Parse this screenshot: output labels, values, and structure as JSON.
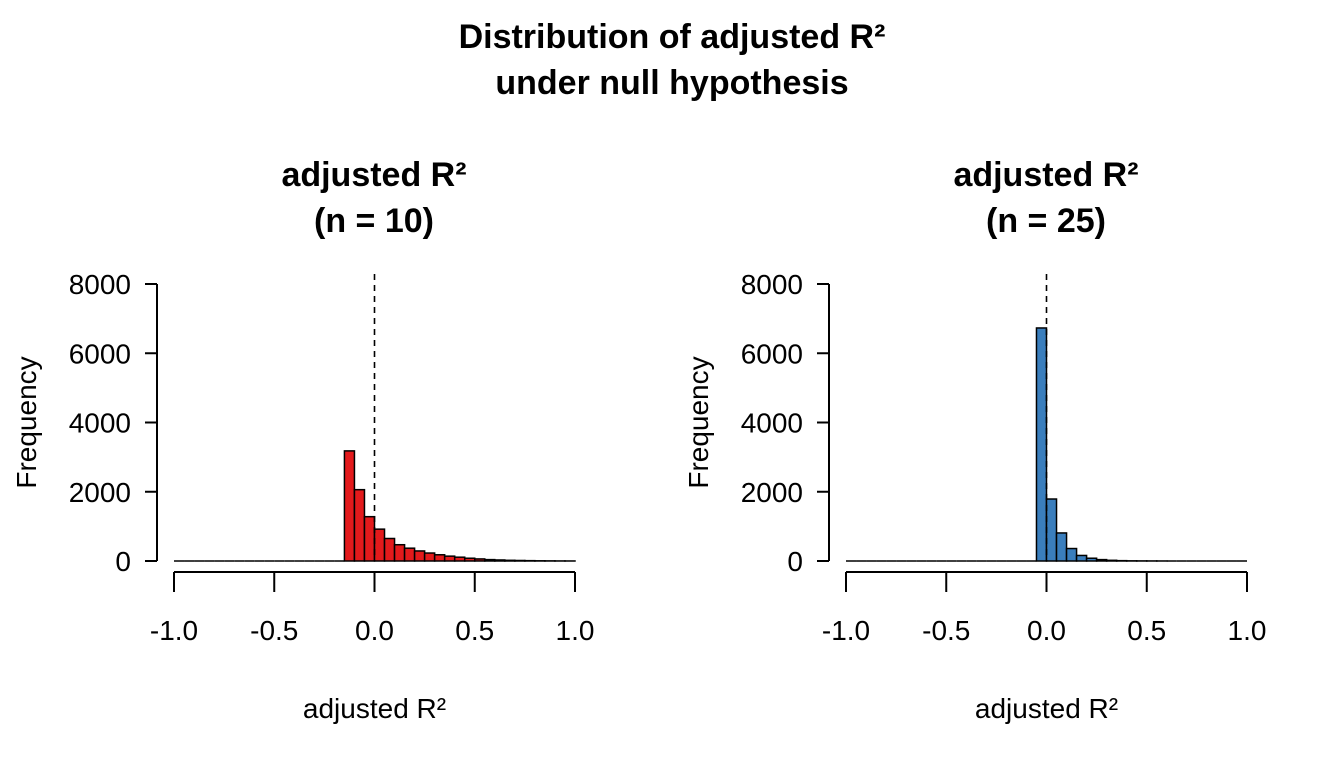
{
  "figure": {
    "title_line1": "Distribution of adjusted R²",
    "title_line2": "under null hypothesis"
  },
  "chart_data": [
    {
      "type": "bar",
      "subtype": "histogram",
      "title_line1": "adjusted R²",
      "title_line2": "(n = 10)",
      "xlabel": "adjusted R²",
      "ylabel": "Frequency",
      "xlim": [
        -1.0,
        1.0
      ],
      "ylim": [
        0,
        8000
      ],
      "x_ticks": [
        -1.0,
        -0.5,
        0.0,
        0.5,
        1.0
      ],
      "x_tick_labels": [
        "-1.0",
        "-0.5",
        "0.0",
        "0.5",
        "1.0"
      ],
      "y_ticks": [
        0,
        2000,
        4000,
        6000,
        8000
      ],
      "y_tick_labels": [
        "0",
        "2000",
        "4000",
        "6000",
        "8000"
      ],
      "bin_width": 0.05,
      "bin_starts": [
        -1.0,
        -0.95,
        -0.9,
        -0.85,
        -0.8,
        -0.75,
        -0.7,
        -0.65,
        -0.6,
        -0.55,
        -0.5,
        -0.45,
        -0.4,
        -0.35,
        -0.3,
        -0.25,
        -0.2,
        -0.15,
        -0.1,
        -0.05,
        0.0,
        0.05,
        0.1,
        0.15,
        0.2,
        0.25,
        0.3,
        0.35,
        0.4,
        0.45,
        0.5,
        0.55,
        0.6,
        0.65,
        0.7,
        0.75,
        0.8,
        0.85,
        0.9,
        0.95
      ],
      "values": [
        0,
        0,
        0,
        0,
        0,
        0,
        0,
        0,
        0,
        0,
        0,
        0,
        0,
        0,
        0,
        0,
        0,
        3180,
        2060,
        1280,
        920,
        650,
        470,
        370,
        290,
        230,
        180,
        140,
        110,
        80,
        60,
        40,
        30,
        20,
        15,
        10,
        6,
        4,
        2,
        1
      ],
      "bar_color": "#e31a1c",
      "reference_line_x": 0.0,
      "reference_line_style": "dashed",
      "grid": false
    },
    {
      "type": "bar",
      "subtype": "histogram",
      "title_line1": "adjusted R²",
      "title_line2": "(n = 25)",
      "xlabel": "adjusted R²",
      "ylabel": "Frequency",
      "xlim": [
        -1.0,
        1.0
      ],
      "ylim": [
        0,
        8000
      ],
      "x_ticks": [
        -1.0,
        -0.5,
        0.0,
        0.5,
        1.0
      ],
      "x_tick_labels": [
        "-1.0",
        "-0.5",
        "0.0",
        "0.5",
        "1.0"
      ],
      "y_ticks": [
        0,
        2000,
        4000,
        6000,
        8000
      ],
      "y_tick_labels": [
        "0",
        "2000",
        "4000",
        "6000",
        "8000"
      ],
      "bin_width": 0.05,
      "bin_starts": [
        -1.0,
        -0.95,
        -0.9,
        -0.85,
        -0.8,
        -0.75,
        -0.7,
        -0.65,
        -0.6,
        -0.55,
        -0.5,
        -0.45,
        -0.4,
        -0.35,
        -0.3,
        -0.25,
        -0.2,
        -0.15,
        -0.1,
        -0.05,
        0.0,
        0.05,
        0.1,
        0.15,
        0.2,
        0.25,
        0.3,
        0.35,
        0.4,
        0.45,
        0.5,
        0.55,
        0.6,
        0.65,
        0.7,
        0.75,
        0.8,
        0.85,
        0.9,
        0.95
      ],
      "values": [
        0,
        0,
        0,
        0,
        0,
        0,
        0,
        0,
        0,
        0,
        0,
        0,
        0,
        0,
        0,
        0,
        0,
        0,
        0,
        6730,
        1790,
        810,
        360,
        160,
        80,
        40,
        20,
        10,
        5,
        3,
        2,
        1,
        0,
        0,
        0,
        0,
        0,
        0,
        0,
        0
      ],
      "bar_color": "#3a7ebd",
      "reference_line_x": 0.0,
      "reference_line_style": "dashed",
      "grid": false
    }
  ]
}
